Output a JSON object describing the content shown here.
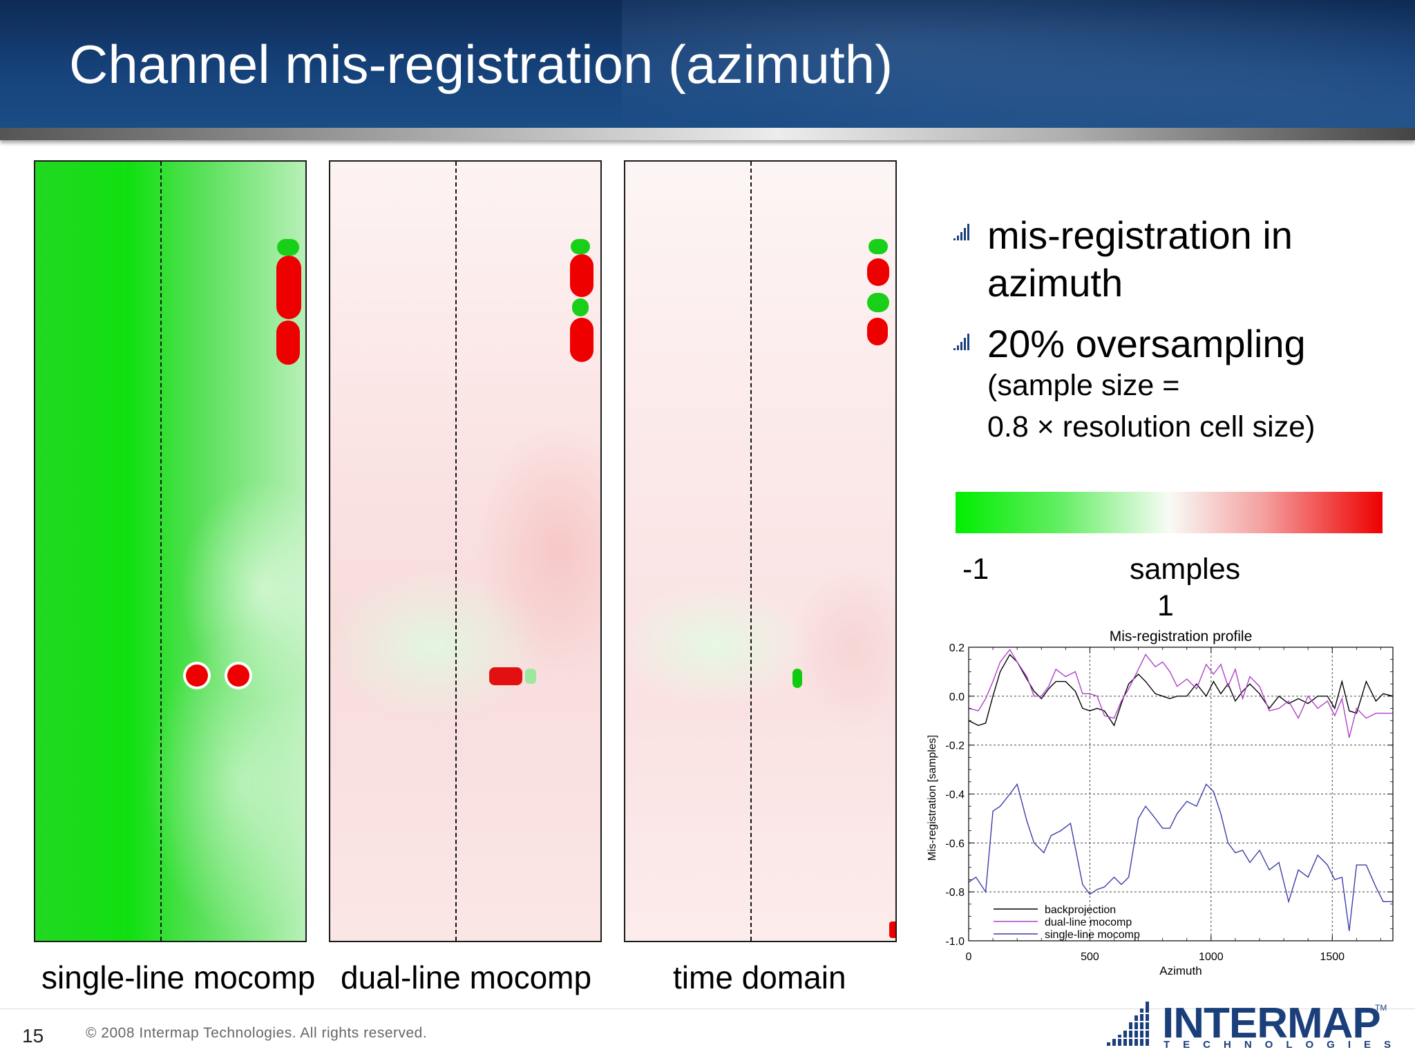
{
  "slide": {
    "title": "Channel mis-registration (azimuth)",
    "page_number": "15",
    "copyright": "© 2008 Intermap Technologies. All rights reserved."
  },
  "panels": [
    {
      "caption": "single-line mocomp"
    },
    {
      "caption": "dual-line mocomp"
    },
    {
      "caption": "time domain"
    }
  ],
  "bullets": [
    {
      "text_lines": [
        "mis-registration in",
        "azimuth"
      ]
    },
    {
      "text_lines": [
        "20% oversampling"
      ],
      "sub_lines": [
        "(sample size =",
        "0.8 × resolution cell size)"
      ]
    }
  ],
  "colorbar": {
    "min_label": "-1",
    "unit_label": "samples",
    "max_label": "1",
    "colors": [
      "#00ee00",
      "#f8fbf6",
      "#ee0000"
    ]
  },
  "logo": {
    "name": "INTERMAP",
    "sub": "TECHNOLOGIES",
    "tm": "TM"
  },
  "chart_data": {
    "type": "line",
    "title": "Mis-registration profile",
    "xlabel": "Azimuth",
    "ylabel": "Mis-registration [samples]",
    "xlim": [
      0,
      1750
    ],
    "ylim": [
      -1.0,
      0.2
    ],
    "xticks": [
      0,
      500,
      1000,
      1500
    ],
    "yticks": [
      0.2,
      0.0,
      -0.2,
      -0.4,
      -0.6,
      -0.8,
      -1.0
    ],
    "ytick_labels": [
      "0.2",
      "0.0",
      "-0.2",
      "-0.4",
      "-0.6",
      "-0.8",
      "-1.0"
    ],
    "grid": true,
    "legend_position": "bottom-left",
    "series": [
      {
        "name": "backprojection",
        "color": "#000000",
        "x": [
          0,
          40,
          70,
          100,
          130,
          170,
          200,
          240,
          270,
          300,
          330,
          360,
          400,
          440,
          470,
          500,
          530,
          560,
          600,
          630,
          660,
          700,
          730,
          770,
          800,
          830,
          860,
          900,
          940,
          980,
          1010,
          1040,
          1070,
          1100,
          1130,
          1160,
          1200,
          1240,
          1280,
          1320,
          1360,
          1400,
          1440,
          1480,
          1510,
          1540,
          1570,
          1600,
          1640,
          1680,
          1710,
          1750
        ],
        "y": [
          -0.1,
          -0.12,
          -0.11,
          0.0,
          0.1,
          0.17,
          0.14,
          0.07,
          0.02,
          -0.01,
          0.03,
          0.06,
          0.06,
          0.02,
          -0.05,
          -0.06,
          -0.05,
          -0.06,
          -0.12,
          -0.03,
          0.05,
          0.09,
          0.06,
          0.01,
          0.0,
          -0.01,
          0.0,
          0.0,
          0.05,
          0.0,
          0.06,
          0.01,
          0.05,
          -0.02,
          0.02,
          0.05,
          0.01,
          -0.05,
          0.0,
          -0.03,
          -0.01,
          -0.03,
          0.0,
          0.0,
          -0.05,
          0.06,
          -0.06,
          -0.07,
          0.06,
          -0.02,
          0.01,
          0.0
        ]
      },
      {
        "name": "dual-line mocomp",
        "color": "#b040c8",
        "x": [
          0,
          40,
          70,
          100,
          130,
          170,
          200,
          240,
          270,
          300,
          330,
          360,
          400,
          440,
          470,
          500,
          530,
          560,
          600,
          630,
          660,
          700,
          730,
          770,
          800,
          830,
          860,
          900,
          940,
          980,
          1010,
          1040,
          1070,
          1100,
          1130,
          1160,
          1200,
          1240,
          1280,
          1320,
          1360,
          1400,
          1440,
          1480,
          1510,
          1540,
          1570,
          1600,
          1640,
          1680,
          1710,
          1750
        ],
        "y": [
          -0.05,
          -0.06,
          -0.01,
          0.06,
          0.14,
          0.19,
          0.14,
          0.08,
          0.0,
          0.0,
          0.04,
          0.11,
          0.08,
          0.1,
          0.01,
          0.01,
          0.0,
          -0.08,
          -0.09,
          -0.02,
          0.03,
          0.11,
          0.17,
          0.12,
          0.14,
          0.1,
          0.04,
          0.07,
          0.03,
          0.13,
          0.09,
          0.13,
          0.04,
          0.11,
          -0.01,
          0.08,
          0.04,
          -0.06,
          -0.05,
          -0.02,
          -0.09,
          0.0,
          -0.05,
          -0.02,
          -0.08,
          -0.01,
          -0.17,
          -0.05,
          -0.09,
          -0.07,
          -0.07,
          -0.07
        ]
      },
      {
        "name": "single-line mocomp",
        "color": "#3c3ca8",
        "x": [
          0,
          30,
          70,
          100,
          130,
          170,
          200,
          240,
          270,
          310,
          340,
          380,
          420,
          470,
          500,
          530,
          560,
          600,
          630,
          660,
          700,
          730,
          770,
          800,
          830,
          860,
          900,
          940,
          980,
          1010,
          1040,
          1070,
          1100,
          1130,
          1160,
          1200,
          1240,
          1280,
          1320,
          1360,
          1400,
          1440,
          1480,
          1510,
          1540,
          1570,
          1600,
          1640,
          1680,
          1710,
          1750
        ],
        "y": [
          -0.76,
          -0.74,
          -0.8,
          -0.47,
          -0.45,
          -0.4,
          -0.36,
          -0.51,
          -0.6,
          -0.64,
          -0.57,
          -0.55,
          -0.52,
          -0.77,
          -0.81,
          -0.79,
          -0.78,
          -0.74,
          -0.77,
          -0.74,
          -0.5,
          -0.45,
          -0.5,
          -0.54,
          -0.54,
          -0.48,
          -0.43,
          -0.45,
          -0.36,
          -0.39,
          -0.48,
          -0.6,
          -0.64,
          -0.63,
          -0.68,
          -0.63,
          -0.71,
          -0.68,
          -0.84,
          -0.71,
          -0.74,
          -0.65,
          -0.69,
          -0.75,
          -0.74,
          -0.96,
          -0.69,
          -0.69,
          -0.78,
          -0.84,
          -0.84
        ]
      }
    ]
  }
}
